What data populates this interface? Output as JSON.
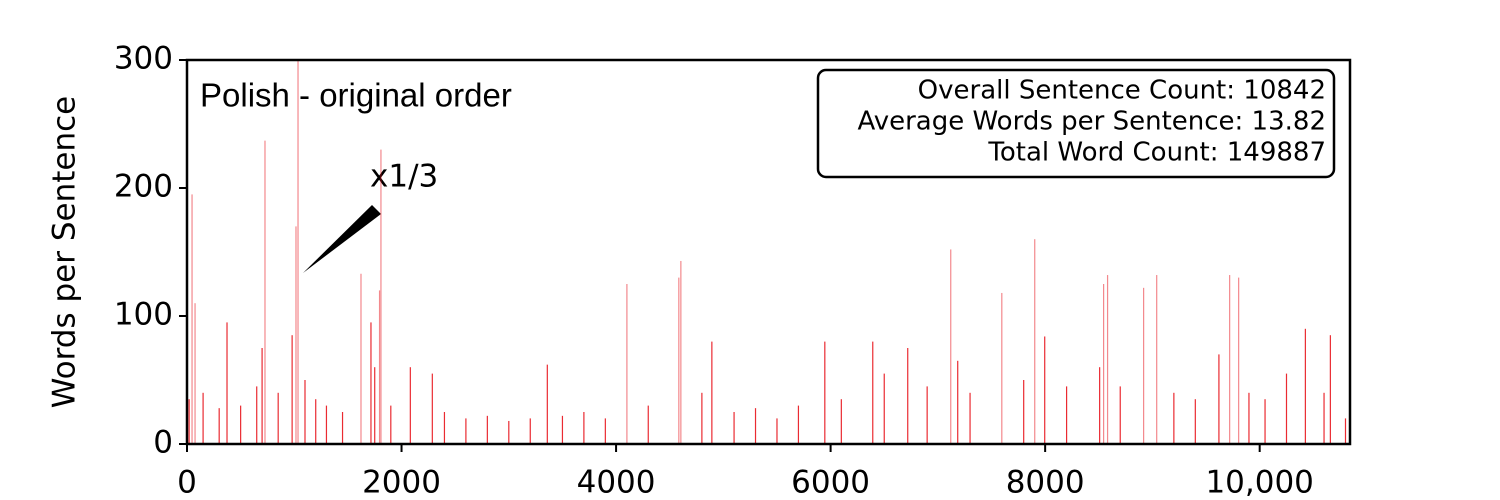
{
  "chart_data": {
    "type": "bar",
    "title": "Polish - original order",
    "ylabel": "Words per Sentence",
    "annotation": "x1/3",
    "stats": [
      "Overall Sentence Count: 10842",
      "Average Words per Sentence: 13.82",
      "Total Word Count: 149887"
    ],
    "color": "#e8141c",
    "x": [
      20,
      47,
      75,
      150,
      300,
      373,
      500,
      650,
      700,
      727,
      850,
      980,
      1016,
      1035,
      1100,
      1200,
      1300,
      1450,
      1622,
      1715,
      1750,
      1795,
      1808,
      1900,
      2082,
      2287,
      2400,
      2600,
      2800,
      3000,
      3200,
      3359,
      3500,
      3700,
      3900,
      4101,
      4300,
      4585,
      4604,
      4800,
      4893,
      5100,
      5300,
      5500,
      5700,
      5946,
      6100,
      6393,
      6500,
      6719,
      6900,
      7120,
      7185,
      7300,
      7596,
      7800,
      7903,
      7996,
      8200,
      8508,
      8545,
      8582,
      8700,
      8918,
      9040,
      9200,
      9400,
      9620,
      9720,
      9804,
      9900,
      10050,
      10250,
      10426,
      10600,
      10659,
      10800
    ],
    "values": [
      35,
      195,
      110,
      40,
      28,
      95,
      30,
      45,
      75,
      237,
      40,
      85,
      170,
      300,
      50,
      35,
      30,
      25,
      133,
      95,
      60,
      120,
      230,
      30,
      60,
      55,
      25,
      20,
      22,
      18,
      20,
      62,
      22,
      25,
      20,
      125,
      30,
      130,
      143,
      40,
      80,
      25,
      28,
      20,
      30,
      80,
      35,
      80,
      55,
      75,
      45,
      152,
      65,
      40,
      118,
      50,
      160,
      84,
      45,
      60,
      125,
      132,
      45,
      122,
      132,
      40,
      35,
      70,
      132,
      130,
      40,
      35,
      55,
      90,
      40,
      85,
      20
    ],
    "xlim": [
      0,
      10842
    ],
    "ylim": [
      0,
      300
    ],
    "xticks": [
      0,
      2000,
      4000,
      6000,
      8000,
      {
        "value": 10000,
        "label": "10,000"
      }
    ],
    "yticks": [
      0,
      100,
      200,
      300
    ]
  }
}
